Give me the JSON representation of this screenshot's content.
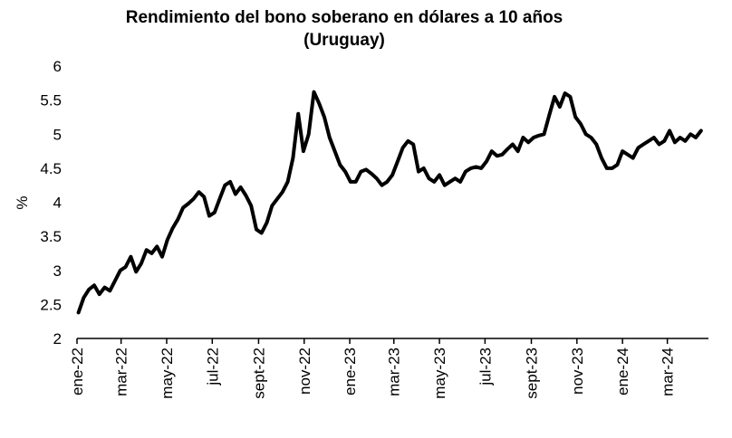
{
  "chart_data": {
    "type": "line",
    "title": "Rendimiento del bono soberano en dólares a 10 años",
    "subtitle": "(Uruguay)",
    "ylabel": "%",
    "xlabel": "",
    "ylim": [
      2,
      6
    ],
    "yticks": [
      "2",
      "2.5",
      "3",
      "3.5",
      "4",
      "4.5",
      "5",
      "5.5",
      "6"
    ],
    "xticks": [
      "ene-22",
      "mar-22",
      "may-22",
      "jul-22",
      "sept-22",
      "nov-22",
      "ene-23",
      "mar-23",
      "may-23",
      "jul-23",
      "sept-23",
      "nov-23",
      "ene-24",
      "mar-24"
    ],
    "grid": false,
    "legend": "none",
    "line_color": "#000000",
    "series": [
      {
        "x": [
          "2022-01-03",
          "2022-01-10",
          "2022-01-17",
          "2022-01-24",
          "2022-01-31",
          "2022-02-07",
          "2022-02-14",
          "2022-02-21",
          "2022-02-28",
          "2022-03-07",
          "2022-03-14",
          "2022-03-21",
          "2022-03-28",
          "2022-04-04",
          "2022-04-11",
          "2022-04-18",
          "2022-04-25",
          "2022-05-02",
          "2022-05-09",
          "2022-05-16",
          "2022-05-23",
          "2022-05-30",
          "2022-06-06",
          "2022-06-13",
          "2022-06-20",
          "2022-06-27",
          "2022-07-04",
          "2022-07-11",
          "2022-07-18",
          "2022-07-25",
          "2022-08-01",
          "2022-08-08",
          "2022-08-15",
          "2022-08-22",
          "2022-08-29",
          "2022-09-05",
          "2022-09-12",
          "2022-09-19",
          "2022-09-26",
          "2022-10-03",
          "2022-10-10",
          "2022-10-17",
          "2022-10-24",
          "2022-10-31",
          "2022-11-07",
          "2022-11-14",
          "2022-11-21",
          "2022-11-28",
          "2022-12-05",
          "2022-12-12",
          "2022-12-19",
          "2022-12-26",
          "2023-01-02",
          "2023-01-09",
          "2023-01-16",
          "2023-01-23",
          "2023-01-30",
          "2023-02-06",
          "2023-02-13",
          "2023-02-20",
          "2023-02-27",
          "2023-03-06",
          "2023-03-13",
          "2023-03-20",
          "2023-03-27",
          "2023-04-03",
          "2023-04-10",
          "2023-04-17",
          "2023-04-24",
          "2023-05-01",
          "2023-05-08",
          "2023-05-15",
          "2023-05-22",
          "2023-05-29",
          "2023-06-05",
          "2023-06-12",
          "2023-06-19",
          "2023-06-26",
          "2023-07-03",
          "2023-07-10",
          "2023-07-17",
          "2023-07-24",
          "2023-07-31",
          "2023-08-07",
          "2023-08-14",
          "2023-08-21",
          "2023-08-28",
          "2023-09-04",
          "2023-09-11",
          "2023-09-18",
          "2023-09-25",
          "2023-10-02",
          "2023-10-09",
          "2023-10-16",
          "2023-10-23",
          "2023-10-30",
          "2023-11-06",
          "2023-11-13",
          "2023-11-20",
          "2023-11-27",
          "2023-12-04",
          "2023-12-11",
          "2023-12-18",
          "2023-12-25",
          "2024-01-01",
          "2024-01-08",
          "2024-01-15",
          "2024-01-22",
          "2024-01-29",
          "2024-02-05",
          "2024-02-12",
          "2024-02-19",
          "2024-02-26",
          "2024-03-04",
          "2024-03-11",
          "2024-03-18",
          "2024-03-25",
          "2024-04-01",
          "2024-04-08",
          "2024-04-15"
        ],
        "values": [
          2.38,
          2.6,
          2.72,
          2.78,
          2.65,
          2.75,
          2.7,
          2.85,
          3.0,
          3.05,
          3.2,
          2.98,
          3.1,
          3.3,
          3.25,
          3.35,
          3.2,
          3.45,
          3.62,
          3.75,
          3.92,
          3.98,
          4.05,
          4.15,
          4.08,
          3.8,
          3.85,
          4.05,
          4.25,
          4.3,
          4.12,
          4.22,
          4.1,
          3.95,
          3.6,
          3.55,
          3.7,
          3.95,
          4.05,
          4.15,
          4.3,
          4.65,
          5.3,
          4.75,
          5.0,
          5.62,
          5.45,
          5.25,
          4.95,
          4.75,
          4.55,
          4.45,
          4.3,
          4.3,
          4.45,
          4.48,
          4.42,
          4.35,
          4.25,
          4.3,
          4.4,
          4.6,
          4.8,
          4.9,
          4.85,
          4.45,
          4.5,
          4.35,
          4.3,
          4.4,
          4.25,
          4.3,
          4.35,
          4.3,
          4.45,
          4.5,
          4.52,
          4.5,
          4.6,
          4.75,
          4.68,
          4.7,
          4.78,
          4.85,
          4.75,
          4.95,
          4.88,
          4.95,
          4.98,
          5.0,
          5.28,
          5.55,
          5.4,
          5.6,
          5.55,
          5.25,
          5.15,
          5.0,
          4.95,
          4.85,
          4.65,
          4.5,
          4.5,
          4.55,
          4.75,
          4.7,
          4.65,
          4.8,
          4.85,
          4.9,
          4.95,
          4.85,
          4.9,
          5.05,
          4.88,
          4.95,
          4.9,
          5.0,
          4.95,
          5.05
        ]
      }
    ]
  }
}
